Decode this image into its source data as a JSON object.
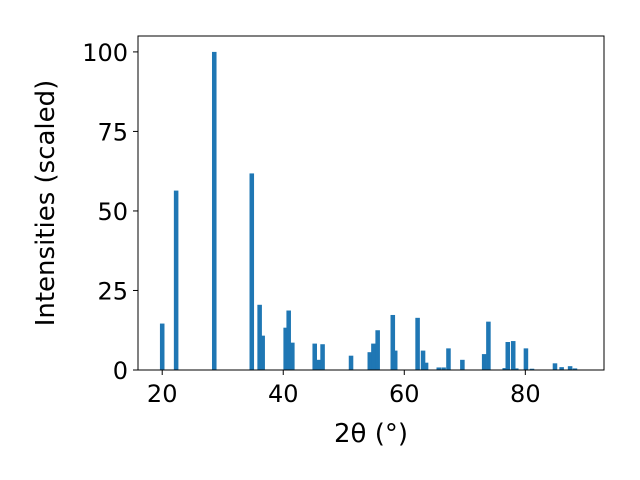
{
  "chart_data": {
    "type": "bar",
    "xlabel": "2θ (°)",
    "ylabel": "Intensities (scaled)",
    "xlim": [
      16,
      93
    ],
    "ylim": [
      0,
      105
    ],
    "xticks": [
      20,
      40,
      60,
      80
    ],
    "yticks": [
      0,
      25,
      50,
      75,
      100
    ],
    "bar_width": 0.75,
    "color": "#1f77b4",
    "grid": false,
    "legend": false,
    "points": [
      {
        "x": 20.0,
        "y": 14.6
      },
      {
        "x": 22.3,
        "y": 56.4
      },
      {
        "x": 28.6,
        "y": 100.0
      },
      {
        "x": 34.8,
        "y": 61.8
      },
      {
        "x": 36.1,
        "y": 20.5
      },
      {
        "x": 36.6,
        "y": 10.8
      },
      {
        "x": 40.4,
        "y": 13.3
      },
      {
        "x": 40.9,
        "y": 18.7
      },
      {
        "x": 41.5,
        "y": 8.6
      },
      {
        "x": 45.2,
        "y": 8.3
      },
      {
        "x": 45.8,
        "y": 3.2
      },
      {
        "x": 46.5,
        "y": 8.1
      },
      {
        "x": 51.2,
        "y": 4.5
      },
      {
        "x": 54.3,
        "y": 5.6
      },
      {
        "x": 54.9,
        "y": 8.3
      },
      {
        "x": 55.6,
        "y": 12.5
      },
      {
        "x": 58.1,
        "y": 17.3
      },
      {
        "x": 58.5,
        "y": 6.1
      },
      {
        "x": 62.2,
        "y": 16.4
      },
      {
        "x": 63.1,
        "y": 6.1
      },
      {
        "x": 63.6,
        "y": 2.3
      },
      {
        "x": 65.7,
        "y": 0.8
      },
      {
        "x": 66.5,
        "y": 0.8
      },
      {
        "x": 67.3,
        "y": 6.8
      },
      {
        "x": 69.6,
        "y": 3.2
      },
      {
        "x": 73.2,
        "y": 5.0
      },
      {
        "x": 73.9,
        "y": 15.2
      },
      {
        "x": 76.6,
        "y": 0.6
      },
      {
        "x": 77.1,
        "y": 8.8
      },
      {
        "x": 78.0,
        "y": 9.1
      },
      {
        "x": 78.5,
        "y": 0.5
      },
      {
        "x": 80.1,
        "y": 6.8
      },
      {
        "x": 81.1,
        "y": 0.4
      },
      {
        "x": 84.9,
        "y": 2.1
      },
      {
        "x": 86.0,
        "y": 0.9
      },
      {
        "x": 87.4,
        "y": 1.2
      },
      {
        "x": 88.2,
        "y": 0.5
      }
    ]
  }
}
